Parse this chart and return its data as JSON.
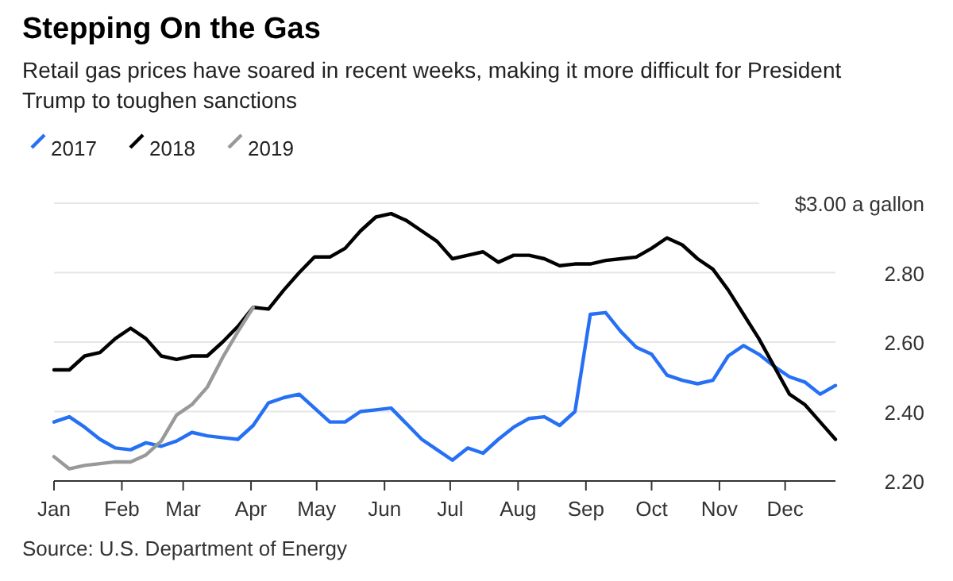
{
  "chart_data": {
    "type": "line",
    "title": "Stepping On the Gas",
    "subtitle": "Retail gas prices have soared in recent weeks, making it more difficult for President Trump to toughen sanctions",
    "annotations": [
      "Source: U.S. Department of Energy"
    ],
    "x": [
      "--01-01",
      "--01-08",
      "--01-15",
      "--01-22",
      "--01-29",
      "--02-05",
      "--02-12",
      "--02-19",
      "--02-26",
      "--03-05",
      "--03-12",
      "--03-19",
      "--03-26",
      "--04-02",
      "--04-09",
      "--04-16",
      "--04-23",
      "--04-30",
      "--05-07",
      "--05-14",
      "--05-21",
      "--05-28",
      "--06-04",
      "--06-11",
      "--06-18",
      "--06-25",
      "--07-02",
      "--07-09",
      "--07-16",
      "--07-23",
      "--07-30",
      "--08-06",
      "--08-13",
      "--08-20",
      "--08-27",
      "--09-03",
      "--09-10",
      "--09-17",
      "--09-24",
      "--10-01",
      "--10-08",
      "--10-15",
      "--10-22",
      "--10-29",
      "--11-05",
      "--11-12",
      "--11-19",
      "--11-26",
      "--12-03",
      "--12-10",
      "--12-17",
      "--12-24"
    ],
    "series": [
      {
        "name": "2017",
        "color": "#2670f5",
        "values": [
          2.37,
          2.385,
          2.355,
          2.32,
          2.295,
          2.29,
          2.31,
          2.3,
          2.315,
          2.34,
          2.33,
          2.325,
          2.32,
          2.36,
          2.425,
          2.44,
          2.45,
          2.41,
          2.37,
          2.37,
          2.4,
          2.405,
          2.41,
          2.365,
          2.32,
          2.29,
          2.26,
          2.295,
          2.28,
          2.32,
          2.355,
          2.38,
          2.385,
          2.36,
          2.4,
          2.68,
          2.685,
          2.63,
          2.585,
          2.565,
          2.505,
          2.49,
          2.48,
          2.49,
          2.56,
          2.59,
          2.565,
          2.53,
          2.5,
          2.485,
          2.45,
          2.475
        ]
      },
      {
        "name": "2018",
        "color": "#000000",
        "values": [
          2.52,
          2.52,
          2.56,
          2.57,
          2.61,
          2.64,
          2.61,
          2.56,
          2.55,
          2.56,
          2.56,
          2.6,
          2.645,
          2.7,
          2.695,
          2.75,
          2.8,
          2.845,
          2.845,
          2.87,
          2.92,
          2.96,
          2.97,
          2.95,
          2.92,
          2.89,
          2.84,
          2.85,
          2.86,
          2.83,
          2.85,
          2.85,
          2.84,
          2.82,
          2.825,
          2.825,
          2.835,
          2.84,
          2.845,
          2.87,
          2.9,
          2.88,
          2.84,
          2.81,
          2.75,
          2.68,
          2.61,
          2.53,
          2.45,
          2.42,
          2.37,
          2.32
        ]
      },
      {
        "name": "2019",
        "color": "#999999",
        "values": [
          2.27,
          2.235,
          2.245,
          2.25,
          2.255,
          2.255,
          2.275,
          2.315,
          2.39,
          2.42,
          2.47,
          2.555,
          2.63,
          2.7,
          null,
          null,
          null,
          null,
          null,
          null,
          null,
          null,
          null,
          null,
          null,
          null,
          null,
          null,
          null,
          null,
          null,
          null,
          null,
          null,
          null,
          null,
          null,
          null,
          null,
          null,
          null,
          null,
          null,
          null,
          null,
          null,
          null,
          null,
          null,
          null,
          null,
          null
        ]
      }
    ],
    "xlim": [
      "--01-01",
      "--12-24"
    ],
    "xticks": [
      {
        "value": "--01-01",
        "label": "Jan"
      },
      {
        "value": "--02-01",
        "label": "Feb"
      },
      {
        "value": "--03-01",
        "label": "Mar"
      },
      {
        "value": "--04-01",
        "label": "Apr"
      },
      {
        "value": "--05-01",
        "label": "May"
      },
      {
        "value": "--06-01",
        "label": "Jun"
      },
      {
        "value": "--07-01",
        "label": "Jul"
      },
      {
        "value": "--08-01",
        "label": "Aug"
      },
      {
        "value": "--09-01",
        "label": "Sep"
      },
      {
        "value": "--10-01",
        "label": "Oct"
      },
      {
        "value": "--11-01",
        "label": "Nov"
      },
      {
        "value": "--12-01",
        "label": "Dec"
      }
    ],
    "ylim": [
      2.2,
      3.0
    ],
    "yticks": [
      {
        "value": 2.2,
        "label": "2.20"
      },
      {
        "value": 2.4,
        "label": "2.40"
      },
      {
        "value": 2.6,
        "label": "2.60"
      },
      {
        "value": 2.8,
        "label": "2.80"
      },
      {
        "value": 3.0,
        "label": "$3.00 a gallon"
      }
    ],
    "grid": "y",
    "legend": "top left",
    "marker": "none",
    "line_style": "solid"
  }
}
